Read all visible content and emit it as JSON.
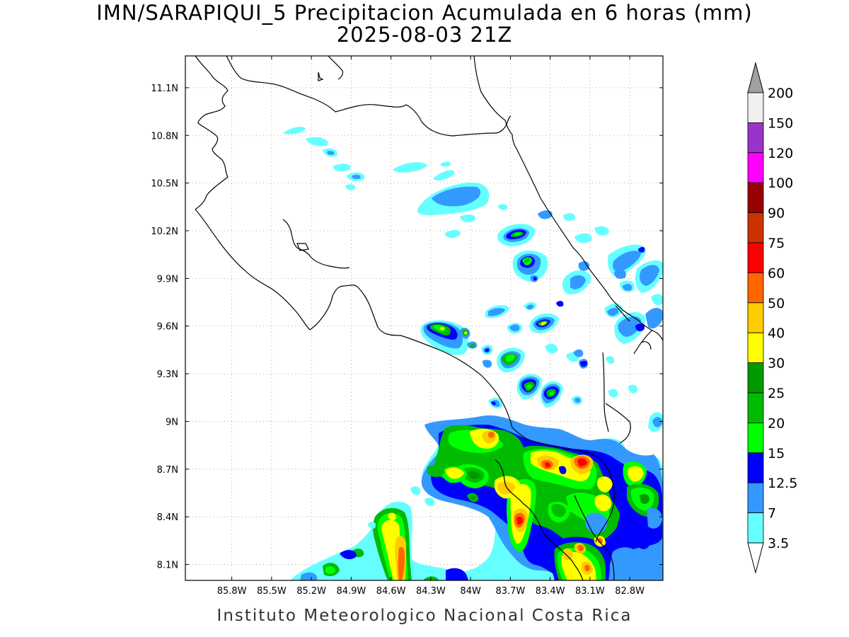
{
  "title": {
    "line1": "IMN/SARAPIQUI_5 Precipitacion Acumulada en 6 horas (mm)",
    "line2": "2025-08-03 21Z"
  },
  "credit": "Instituto Meteorologico Nacional Costa Rica",
  "map": {
    "lon_range": [
      -86.15,
      -82.55
    ],
    "lat_range": [
      8.0,
      11.3
    ],
    "lon_ticks": [
      "85.8W",
      "85.5W",
      "85.2W",
      "84.9W",
      "84.6W",
      "84.3W",
      "84W",
      "83.7W",
      "83.4W",
      "83.1W",
      "82.8W"
    ],
    "lat_ticks": [
      "11.1N",
      "10.8N",
      "10.5N",
      "10.2N",
      "9.9N",
      "9.6N",
      "9.3N",
      "9N",
      "8.7N",
      "8.4N",
      "8.1N"
    ],
    "grid": true
  },
  "colorbar": {
    "labels": [
      "200",
      "150",
      "120",
      "100",
      "90",
      "75",
      "60",
      "50",
      "40",
      "30",
      "25",
      "20",
      "15",
      "12.5",
      "7",
      "3.5"
    ],
    "colors": {
      "above_max": "#a0a0a0",
      "c150_200": "#f0f0f0",
      "c120_150": "#9933cc",
      "c100_120": "#ff00ff",
      "c90_100": "#990000",
      "c75_90": "#cc3300",
      "c60_75": "#ff0000",
      "c50_60": "#ff6600",
      "c40_50": "#ffcc00",
      "c30_40": "#ffff00",
      "c25_30": "#009900",
      "c20_25": "#00bb00",
      "c15_20": "#00ff00",
      "c12_5_15": "#0000ff",
      "c7_12_5": "#3399ff",
      "c3_5_7": "#66ffff",
      "below_min": "#ffffff"
    }
  }
}
